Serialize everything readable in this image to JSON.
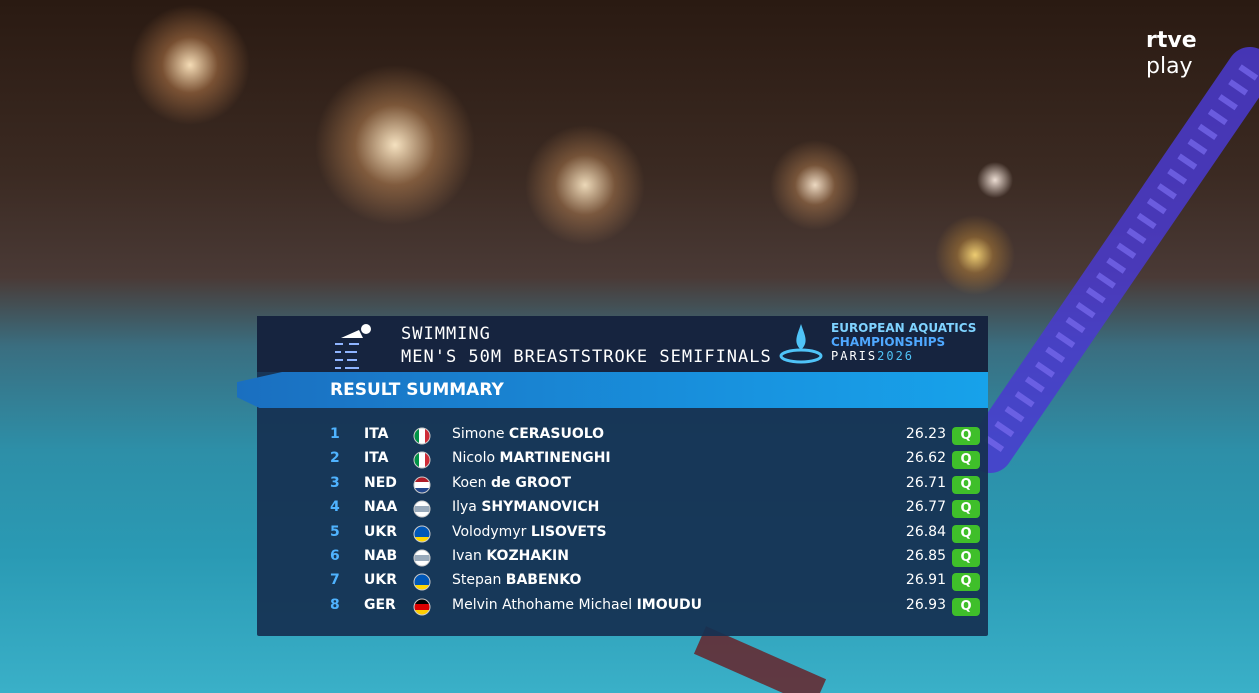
{
  "broadcaster": {
    "line1": "rtve",
    "line2": "play"
  },
  "header": {
    "sport": "SWIMMING",
    "event": "MEN'S 50M BREASTSTROKE SEMIFINALS",
    "logo": {
      "line1": "EUROPEAN AQUATICS",
      "line2": "CHAMPIONSHIPS",
      "city": "PARIS",
      "year": "2026"
    },
    "section": "RESULT SUMMARY"
  },
  "table": {
    "rows": [
      {
        "rank": 1,
        "country": "ITA",
        "first": "Simone",
        "last": "CERASUOLO",
        "time": 26.23,
        "qualifier": "Q"
      },
      {
        "rank": 2,
        "country": "ITA",
        "first": "Nicolo",
        "last": "MARTINENGHI",
        "time": 26.62,
        "qualifier": "Q"
      },
      {
        "rank": 3,
        "country": "NED",
        "first": "Koen",
        "last": "de GROOT",
        "time": 26.71,
        "qualifier": "Q"
      },
      {
        "rank": 4,
        "country": "NAA",
        "first": "Ilya",
        "last": "SHYMANOVICH",
        "time": 26.77,
        "qualifier": "Q"
      },
      {
        "rank": 5,
        "country": "UKR",
        "first": "Volodymyr",
        "last": "LISOVETS",
        "time": 26.84,
        "qualifier": "Q"
      },
      {
        "rank": 6,
        "country": "NAB",
        "first": "Ivan",
        "last": "KOZHAKIN",
        "time": 26.85,
        "qualifier": "Q"
      },
      {
        "rank": 7,
        "country": "UKR",
        "first": "Stepan",
        "last": "BABENKO",
        "time": 26.91,
        "qualifier": "Q"
      },
      {
        "rank": 8,
        "country": "GER",
        "first": "Melvin Athohame Michael",
        "last": "IMOUDU",
        "time": 26.93,
        "qualifier": "Q"
      }
    ]
  }
}
